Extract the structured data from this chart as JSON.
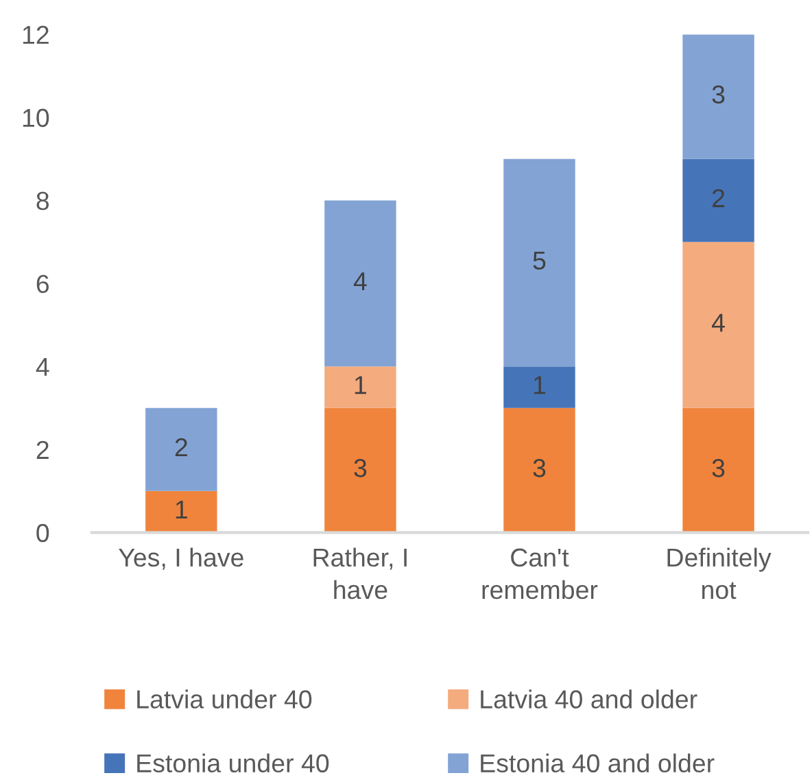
{
  "chart_data": {
    "type": "bar",
    "stacked": true,
    "categories": [
      "Yes, I have",
      "Rather, I have",
      "Can't remember",
      "Definitely not"
    ],
    "series": [
      {
        "name": "Latvia under 40",
        "color": "#f0843c",
        "values": [
          1,
          3,
          3,
          3
        ]
      },
      {
        "name": "Latvia 40 and older",
        "color": "#f4ab7e",
        "values": [
          null,
          1,
          null,
          4
        ]
      },
      {
        "name": "Estonia under 40",
        "color": "#4674b8",
        "values": [
          null,
          null,
          1,
          2
        ]
      },
      {
        "name": "Estonia 40 and older",
        "color": "#83a3d4",
        "values": [
          2,
          4,
          5,
          3
        ]
      }
    ],
    "ylim": [
      0,
      12
    ],
    "yticks": [
      0,
      2,
      4,
      6,
      8,
      10,
      12
    ],
    "data_labels": true,
    "legend": "bottom"
  }
}
